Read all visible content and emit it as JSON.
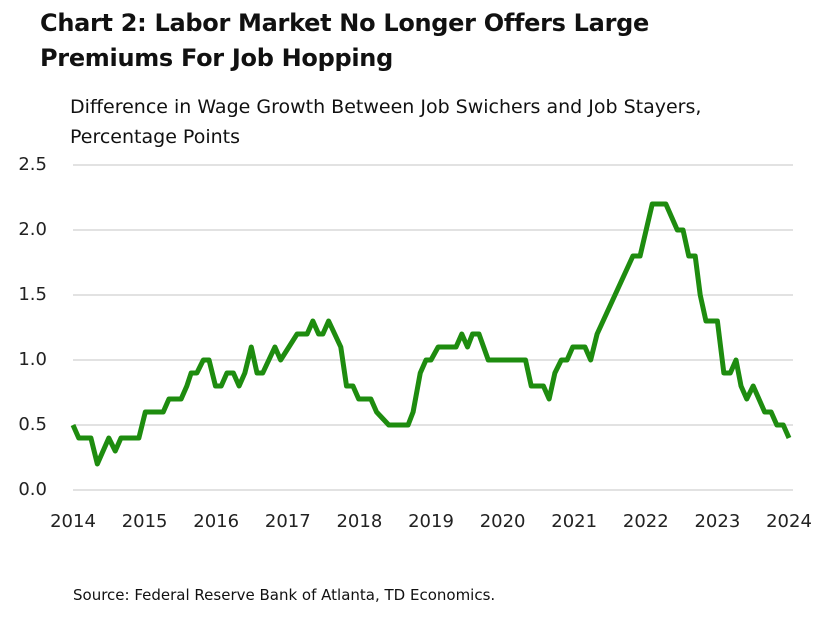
{
  "chart_data": {
    "type": "line",
    "title": "Chart 2: Labor Market No Longer Offers Large Premiums For Job Hopping",
    "subtitle": "Difference in Wage Growth Between Job Swichers and Job Stayers, Percentage Points",
    "source": "Source: Federal Reserve Bank of Atlanta, TD Economics.",
    "xlim": [
      2014,
      2024
    ],
    "xticks": [
      2014,
      2015,
      2016,
      2017,
      2018,
      2019,
      2020,
      2021,
      2022,
      2023,
      2024
    ],
    "ylim": [
      0,
      2.5
    ],
    "yticks": [
      {
        "value": 0,
        "label": "0.0"
      },
      0.5,
      {
        "value": 1,
        "label": "1.0"
      },
      1.5,
      {
        "value": 2,
        "label": "2.0"
      },
      2.5
    ],
    "grid": true,
    "series": [
      {
        "name": "Difference in wage growth",
        "color": "#1e8c0f",
        "x": [
          2014.0,
          2014.08,
          2014.25,
          2014.34,
          2014.5,
          2014.59,
          2014.67,
          2014.92,
          2015.01,
          2015.26,
          2015.34,
          2015.51,
          2015.59,
          2015.65,
          2015.73,
          2015.82,
          2015.9,
          2015.99,
          2016.07,
          2016.15,
          2016.24,
          2016.32,
          2016.4,
          2016.49,
          2016.57,
          2016.65,
          2016.82,
          2016.9,
          2017.13,
          2017.27,
          2017.35,
          2017.43,
          2017.49,
          2017.57,
          2017.74,
          2017.82,
          2017.91,
          2017.99,
          2018.16,
          2018.24,
          2018.41,
          2018.68,
          2018.75,
          2018.85,
          2018.93,
          2019.0,
          2019.1,
          2019.35,
          2019.43,
          2019.51,
          2019.58,
          2019.67,
          2019.8,
          2020.32,
          2020.4,
          2020.57,
          2020.65,
          2020.73,
          2020.82,
          2020.9,
          2020.98,
          2021.15,
          2021.23,
          2021.32,
          2021.82,
          2021.92,
          2022.09,
          2022.28,
          2022.44,
          2022.52,
          2022.6,
          2022.69,
          2022.76,
          2022.84,
          2023.0,
          2023.09,
          2023.18,
          2023.26,
          2023.33,
          2023.41,
          2023.5,
          2023.66,
          2023.75,
          2023.83,
          2023.92,
          2024.0
        ],
        "values": [
          0.5,
          0.4,
          0.4,
          0.2,
          0.4,
          0.3,
          0.4,
          0.4,
          0.6,
          0.6,
          0.7,
          0.7,
          0.8,
          0.9,
          0.9,
          1.0,
          1.0,
          0.8,
          0.8,
          0.9,
          0.9,
          0.8,
          0.9,
          1.1,
          0.9,
          0.9,
          1.1,
          1.0,
          1.2,
          1.2,
          1.3,
          1.2,
          1.2,
          1.3,
          1.1,
          0.8,
          0.8,
          0.7,
          0.7,
          0.6,
          0.5,
          0.5,
          0.6,
          0.9,
          1.0,
          1.0,
          1.1,
          1.1,
          1.2,
          1.1,
          1.2,
          1.2,
          1.0,
          1.0,
          0.8,
          0.8,
          0.7,
          0.9,
          1.0,
          1.0,
          1.1,
          1.1,
          1.0,
          1.2,
          1.8,
          1.8,
          2.2,
          2.2,
          2.0,
          2.0,
          1.8,
          1.8,
          1.5,
          1.3,
          1.3,
          0.9,
          0.9,
          1.0,
          0.8,
          0.7,
          0.8,
          0.6,
          0.6,
          0.5,
          0.5,
          0.4
        ]
      }
    ]
  }
}
